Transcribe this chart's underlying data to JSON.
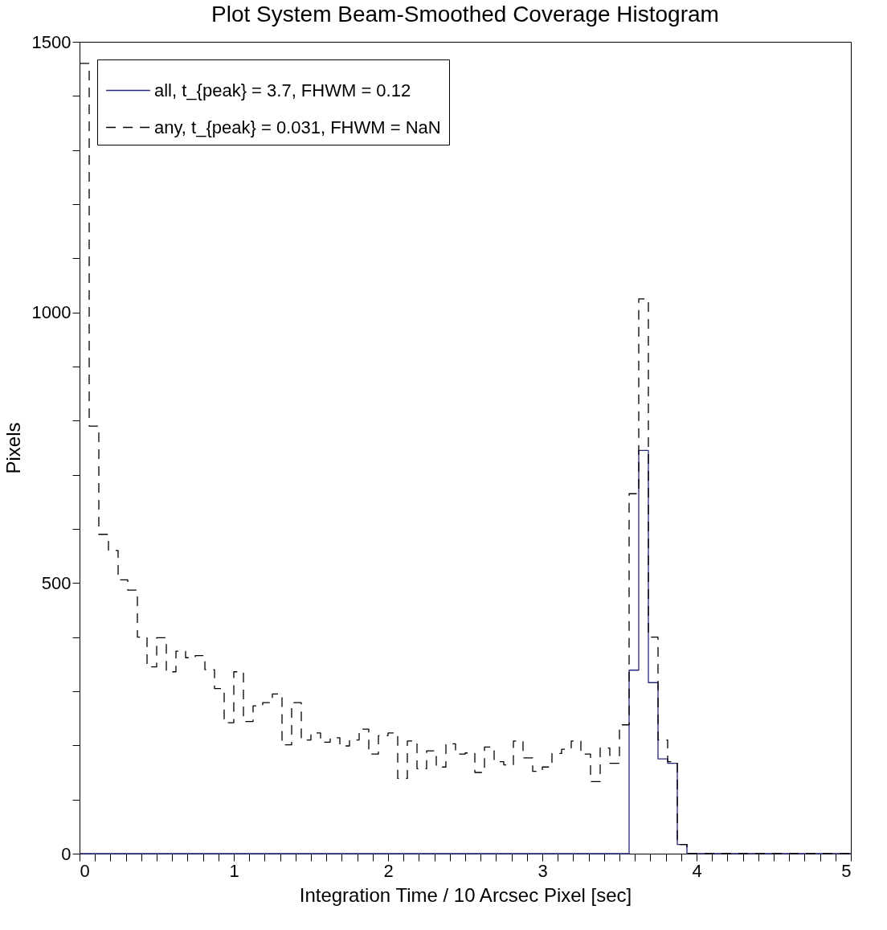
{
  "chart_data": {
    "type": "histogram",
    "title": "Plot System Beam-Smoothed Coverage Histogram",
    "xlabel": "Integration Time / 10 Arcsec Pixel [sec]",
    "ylabel": "Pixels",
    "bins": [
      0,
      0.0625,
      0.125,
      0.1875,
      0.25,
      0.3125,
      0.375,
      0.4375,
      0.5,
      0.5625,
      0.625,
      0.6875,
      0.75,
      0.8125,
      0.875,
      0.9375,
      1,
      1.0625,
      1.125,
      1.1875,
      1.25,
      1.3125,
      1.375,
      1.4375,
      1.5,
      1.5625,
      1.625,
      1.6875,
      1.75,
      1.8125,
      1.875,
      1.9375,
      2,
      2.0625,
      2.125,
      2.1875,
      2.25,
      2.3125,
      2.375,
      2.4375,
      2.5,
      2.5625,
      2.625,
      2.6875,
      2.75,
      2.8125,
      2.875,
      2.9375,
      3,
      3.0625,
      3.125,
      3.1875,
      3.25,
      3.3125,
      3.375,
      3.4375,
      3.5,
      3.5625,
      3.625,
      3.6875,
      3.75,
      3.8125,
      3.875,
      3.9375,
      4,
      4.0625,
      4.125,
      4.1875,
      4.25,
      4.3125,
      4.375,
      4.4375,
      4.5,
      4.5625,
      4.625,
      4.6875,
      4.75,
      4.8125,
      4.875,
      4.9375,
      5
    ],
    "series": [
      {
        "name": "all, t_{peak} = 3.7, FHWM = 0.12",
        "color": "#26267a",
        "line_style": "solid",
        "values": [
          0,
          0,
          0,
          0,
          0,
          0,
          0,
          0,
          0,
          0,
          0,
          0,
          0,
          0,
          0,
          0,
          0,
          0,
          0,
          0,
          0,
          0,
          0,
          0,
          0,
          0,
          0,
          0,
          0,
          0,
          0,
          0,
          0,
          0,
          0,
          0,
          0,
          0,
          0,
          0,
          0,
          0,
          0,
          0,
          0,
          0,
          0,
          0,
          0,
          0,
          0,
          0,
          0,
          0,
          0,
          0,
          0,
          339,
          745,
          316,
          175,
          167,
          17,
          0,
          0,
          0,
          0,
          0,
          0,
          0,
          0,
          0,
          0,
          0,
          0,
          0,
          0,
          0,
          0,
          0
        ]
      },
      {
        "name": "any, t_{peak} = 0.031, FHWM = NaN",
        "color": "#000000",
        "line_style": "dashed",
        "values": [
          1460,
          790,
          590,
          560,
          506,
          487,
          400,
          345,
          399,
          336,
          374,
          362,
          366,
          340,
          305,
          242,
          336,
          244,
          273,
          279,
          295,
          201,
          279,
          210,
          223,
          206,
          214,
          199,
          210,
          230,
          184,
          218,
          223,
          139,
          208,
          157,
          190,
          160,
          203,
          184,
          186,
          150,
          197,
          170,
          164,
          208,
          177,
          152,
          160,
          185,
          193,
          208,
          184,
          133,
          195,
          167,
          238,
          665,
          1025,
          400,
          210,
          170,
          17,
          0,
          0,
          0,
          0,
          0,
          0,
          0,
          0,
          0,
          0,
          0,
          0,
          0,
          0,
          0,
          0,
          0
        ]
      }
    ],
    "xlim": [
      0,
      5
    ],
    "xticks": [
      0,
      {
        "value": 0.1,
        "label": null
      },
      {
        "value": 0.2,
        "label": null
      },
      {
        "value": 0.3,
        "label": null
      },
      {
        "value": 0.4,
        "label": null
      },
      {
        "value": 0.5,
        "label": null
      },
      {
        "value": 0.6,
        "label": null
      },
      {
        "value": 0.7,
        "label": null
      },
      {
        "value": 0.8,
        "label": null
      },
      {
        "value": 0.9,
        "label": null
      },
      1,
      {
        "value": 1.1,
        "label": null
      },
      {
        "value": 1.2,
        "label": null
      },
      {
        "value": 1.3,
        "label": null
      },
      {
        "value": 1.4,
        "label": null
      },
      {
        "value": 1.5,
        "label": null
      },
      {
        "value": 1.6,
        "label": null
      },
      {
        "value": 1.7,
        "label": null
      },
      {
        "value": 1.8,
        "label": null
      },
      {
        "value": 1.9,
        "label": null
      },
      2,
      {
        "value": 2.1,
        "label": null
      },
      {
        "value": 2.2,
        "label": null
      },
      {
        "value": 2.3,
        "label": null
      },
      {
        "value": 2.4,
        "label": null
      },
      {
        "value": 2.5,
        "label": null
      },
      {
        "value": 2.6,
        "label": null
      },
      {
        "value": 2.7,
        "label": null
      },
      {
        "value": 2.8,
        "label": null
      },
      {
        "value": 2.9,
        "label": null
      },
      3,
      {
        "value": 3.1,
        "label": null
      },
      {
        "value": 3.2,
        "label": null
      },
      {
        "value": 3.3,
        "label": null
      },
      {
        "value": 3.4,
        "label": null
      },
      {
        "value": 3.5,
        "label": null
      },
      {
        "value": 3.6,
        "label": null
      },
      {
        "value": 3.7,
        "label": null
      },
      {
        "value": 3.8,
        "label": null
      },
      {
        "value": 3.9,
        "label": null
      },
      4,
      {
        "value": 4.1,
        "label": null
      },
      {
        "value": 4.2,
        "label": null
      },
      {
        "value": 4.3,
        "label": null
      },
      {
        "value": 4.4,
        "label": null
      },
      {
        "value": 4.5,
        "label": null
      },
      {
        "value": 4.6,
        "label": null
      },
      {
        "value": 4.7,
        "label": null
      },
      {
        "value": 4.8,
        "label": null
      },
      {
        "value": 4.9,
        "label": null
      },
      5
    ],
    "ylim": [
      0,
      1500
    ],
    "yticks": [
      0,
      {
        "value": 100,
        "label": null
      },
      {
        "value": 200,
        "label": null
      },
      {
        "value": 300,
        "label": null
      },
      {
        "value": 400,
        "label": null
      },
      500,
      {
        "value": 600,
        "label": null
      },
      {
        "value": 700,
        "label": null
      },
      {
        "value": 800,
        "label": null
      },
      {
        "value": 900,
        "label": null
      },
      1000,
      {
        "value": 1100,
        "label": null
      },
      {
        "value": 1200,
        "label": null
      },
      {
        "value": 1300,
        "label": null
      },
      {
        "value": 1400,
        "label": null
      },
      1500
    ],
    "grid": false,
    "legend": "top left",
    "marker": "none"
  }
}
